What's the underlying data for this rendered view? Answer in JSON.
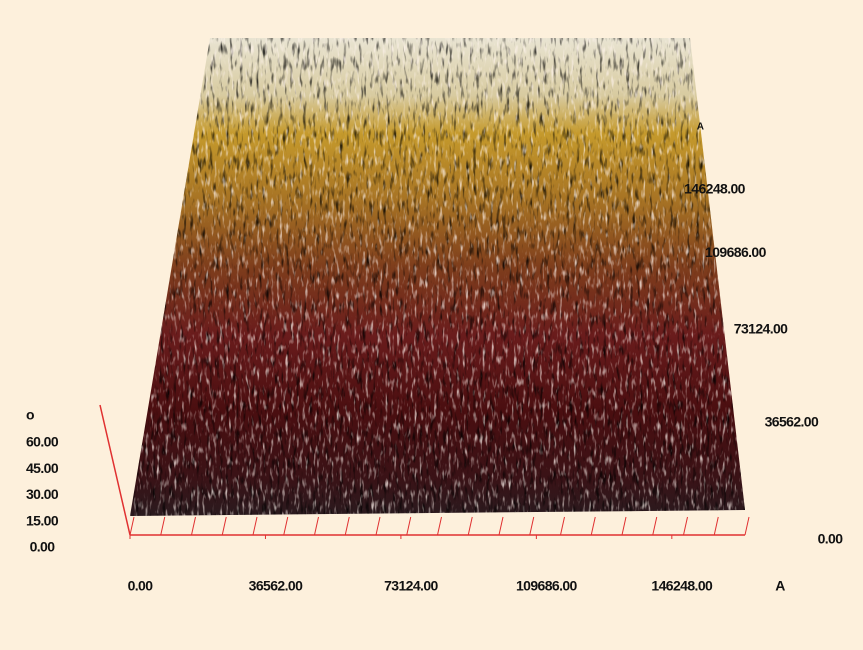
{
  "chart_data": {
    "type": "surface3d",
    "xlabel": "A",
    "ylabel": "A",
    "zlabel": "o",
    "xlim": [
      0,
      166000
    ],
    "ylim": [
      0,
      175000
    ],
    "zlim": [
      0,
      60
    ],
    "xticks": [
      {
        "value": 0,
        "label": "0.00"
      },
      {
        "value": 36562,
        "label": "36562.00"
      },
      {
        "value": 73124,
        "label": "73124.00"
      },
      {
        "value": 109686,
        "label": "109686.00"
      },
      {
        "value": 146248,
        "label": "146248.00"
      }
    ],
    "yticks": [
      {
        "value": 0,
        "label": "0.00"
      },
      {
        "value": 36562,
        "label": "36562.00"
      },
      {
        "value": 73124,
        "label": "73124.00"
      },
      {
        "value": 109686,
        "label": "109686.00"
      },
      {
        "value": 146248,
        "label": "146248.00"
      }
    ],
    "zticks": [
      {
        "value": 0,
        "label": "0.00"
      },
      {
        "value": 15,
        "label": "15.00"
      },
      {
        "value": 30,
        "label": "30.00"
      },
      {
        "value": 45,
        "label": "45.00"
      },
      {
        "value": 60,
        "label": "60.00"
      }
    ],
    "axis_color": "#e03030"
  }
}
